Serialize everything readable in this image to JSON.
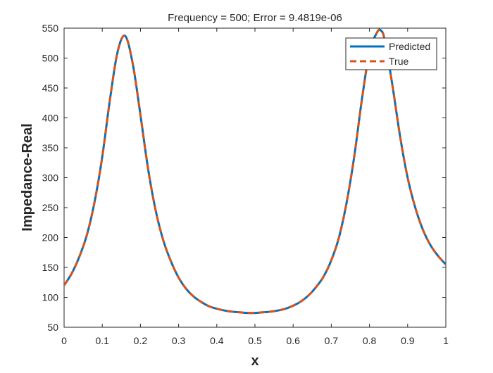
{
  "chart_data": {
    "type": "line",
    "title": "Frequency = 500; Error = 9.4819e-06",
    "xlabel": "x",
    "ylabel": "Impedance-Real",
    "xlim": [
      0,
      1
    ],
    "ylim": [
      50,
      550
    ],
    "x_ticks": [
      "0",
      "0.1",
      "0.2",
      "0.3",
      "0.4",
      "0.5",
      "0.6",
      "0.7",
      "0.8",
      "0.9",
      "1"
    ],
    "y_ticks": [
      "50",
      "100",
      "150",
      "200",
      "250",
      "300",
      "350",
      "400",
      "450",
      "500",
      "550"
    ],
    "grid": false,
    "legend_position": "top-right",
    "x": [
      0,
      0.02,
      0.04,
      0.06,
      0.08,
      0.1,
      0.12,
      0.14,
      0.16,
      0.18,
      0.2,
      0.22,
      0.24,
      0.26,
      0.28,
      0.3,
      0.32,
      0.34,
      0.36,
      0.38,
      0.4,
      0.42,
      0.44,
      0.46,
      0.48,
      0.5,
      0.52,
      0.54,
      0.56,
      0.58,
      0.6,
      0.62,
      0.64,
      0.66,
      0.68,
      0.7,
      0.72,
      0.74,
      0.76,
      0.78,
      0.8,
      0.82,
      0.83,
      0.84,
      0.86,
      0.88,
      0.9,
      0.92,
      0.94,
      0.96,
      0.98,
      1.0
    ],
    "series": [
      {
        "name": "Predicted",
        "color": "#0072BD",
        "style": "solid",
        "values": [
          120,
          140,
          168,
          205,
          260,
          335,
          430,
          510,
          537,
          490,
          405,
          315,
          245,
          195,
          160,
          133,
          114,
          101,
          92,
          85,
          81,
          78,
          76,
          75,
          74,
          74,
          75,
          76,
          78,
          81,
          86,
          93,
          103,
          117,
          135,
          162,
          200,
          258,
          335,
          430,
          510,
          543,
          546,
          530,
          455,
          370,
          300,
          250,
          213,
          187,
          169,
          155
        ]
      },
      {
        "name": "True",
        "color": "#D95319",
        "style": "dashed",
        "values": [
          120,
          140,
          168,
          205,
          260,
          335,
          430,
          510,
          537,
          490,
          405,
          315,
          245,
          195,
          160,
          133,
          114,
          101,
          92,
          85,
          81,
          78,
          76,
          75,
          74,
          74,
          75,
          76,
          78,
          81,
          86,
          93,
          103,
          117,
          135,
          162,
          200,
          258,
          335,
          430,
          510,
          543,
          546,
          530,
          455,
          370,
          300,
          250,
          213,
          187,
          169,
          155
        ]
      }
    ]
  }
}
